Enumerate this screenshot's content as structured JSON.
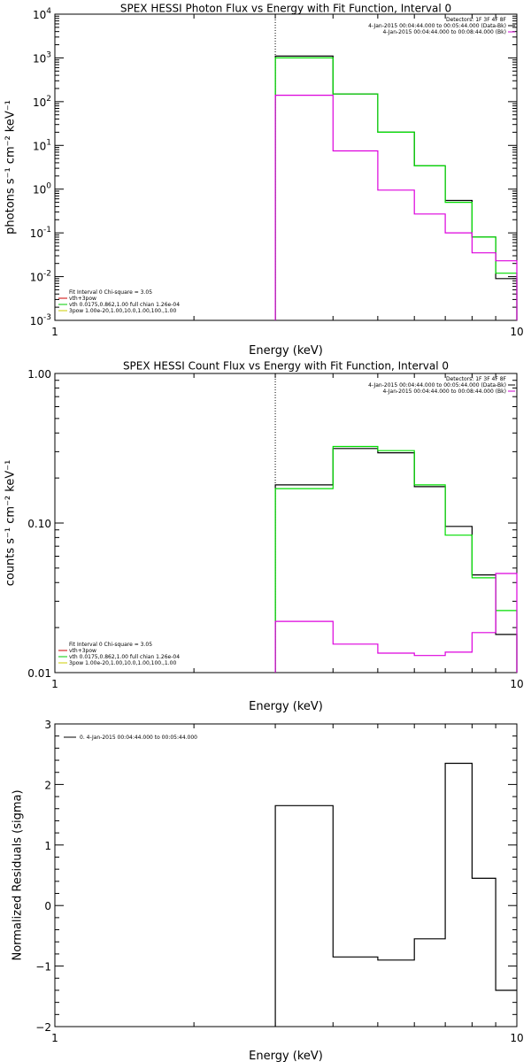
{
  "chart_data": [
    {
      "type": "line",
      "title": "SPEX HESSI Photon Flux vs Energy with Fit Function, Interval 0",
      "xlabel": "Energy (keV)",
      "ylabel": "photons s⁻¹ cm⁻² keV⁻¹",
      "xscale": "log",
      "yscale": "log",
      "xlim": [
        1,
        10
      ],
      "ylim": [
        0.001,
        10000
      ],
      "x_ticks": [
        {
          "v": 1,
          "label": "1"
        },
        {
          "v": 10,
          "label": "10"
        }
      ],
      "y_ticks": [
        {
          "v": 0.001,
          "b": "10",
          "e": "-3"
        },
        {
          "v": 0.01,
          "b": "10",
          "e": "-2"
        },
        {
          "v": 0.1,
          "b": "10",
          "e": "-1"
        },
        {
          "v": 1,
          "b": "10",
          "e": "0"
        },
        {
          "v": 10,
          "b": "10",
          "e": "1"
        },
        {
          "v": 100,
          "b": "10",
          "e": "2"
        },
        {
          "v": 1000,
          "b": "10",
          "e": "3"
        },
        {
          "v": 10000,
          "b": "10",
          "e": "4"
        }
      ],
      "vline_x": 3,
      "bin_edges": [
        3,
        4,
        5,
        6,
        7,
        8,
        9,
        10
      ],
      "header_lines": [
        "Detectors: 1F 3F 4F 8F",
        "4-Jan-2015 00:04:44.000 to 00:05:44.000 (Data-Bk)",
        "4-Jan-2015 00:04:44.000 to 00:08:44.000 (Bk)"
      ],
      "header_colors": [
        "",
        "#000000",
        "#cc00cc"
      ],
      "fit_lines": [
        "Fit Interval 0   Chi-square = 3.05",
        "vth+3pow",
        "vth 0.0175,0.862,1.00  full chian 1.26e-04",
        "3pow 1.00e-20,1.00,10.0,1.00,100.,1.00"
      ],
      "fit_colors": [
        "",
        "#cc0000",
        "#00cc00",
        "#cccc00"
      ],
      "series": [
        {
          "color": "#000000",
          "values": [
            1100,
            150,
            20,
            3.4,
            0.55,
            0.08,
            0.009
          ]
        },
        {
          "color": "#00dd00",
          "values": [
            1000,
            150,
            20,
            3.4,
            0.5,
            0.08,
            0.012
          ]
        },
        {
          "color": "#dd00dd",
          "values": [
            140,
            7.5,
            0.95,
            0.27,
            0.1,
            0.035,
            0.023
          ]
        }
      ]
    },
    {
      "type": "line",
      "title": "SPEX HESSI Count Flux vs Energy with Fit Function, Interval 0",
      "xlabel": "Energy (keV)",
      "ylabel": "counts s⁻¹ cm⁻² keV⁻¹",
      "xscale": "log",
      "yscale": "log",
      "xlim": [
        1,
        10
      ],
      "ylim": [
        0.01,
        1
      ],
      "x_ticks": [
        {
          "v": 1,
          "label": "1"
        },
        {
          "v": 10,
          "label": "10"
        }
      ],
      "y_ticks": [
        {
          "v": 0.01,
          "label": "0.01"
        },
        {
          "v": 0.1,
          "label": "0.10"
        },
        {
          "v": 1,
          "label": "1.00"
        }
      ],
      "vline_x": 3,
      "bin_edges": [
        3,
        4,
        5,
        6,
        7,
        8,
        9,
        10
      ],
      "header_lines": [
        "Detectors: 1F 3F 4F 8F",
        "4-Jan-2015 00:04:44.000 to 00:05:44.000 (Data-Bk)",
        "4-Jan-2015 00:04:44.000 to 00:08:44.000 (Bk)"
      ],
      "header_colors": [
        "",
        "#000000",
        "#cc00cc"
      ],
      "fit_lines": [
        "Fit Interval 0   Chi-square = 3.05",
        "vth+3pow",
        "vth 0.0175,0.862,1.00  full chian 1.26e-04",
        "3pow 1.00e-20,1.00,10.0,1.00,100.,1.00"
      ],
      "fit_colors": [
        "",
        "#cc0000",
        "#00cc00",
        "#cccc00"
      ],
      "series": [
        {
          "color": "#000000",
          "values": [
            0.18,
            0.315,
            0.295,
            0.175,
            0.095,
            0.045,
            0.018
          ]
        },
        {
          "color": "#00dd00",
          "values": [
            0.17,
            0.325,
            0.305,
            0.18,
            0.083,
            0.043,
            0.026
          ]
        },
        {
          "color": "#dd00dd",
          "values": [
            0.022,
            0.0155,
            0.0135,
            0.013,
            0.0137,
            0.0185,
            0.046
          ]
        }
      ]
    },
    {
      "type": "line",
      "title": "",
      "xlabel": "Energy (keV)",
      "ylabel": "Normalized Residuals (sigma)",
      "xscale": "log",
      "yscale": "linear",
      "xlim": [
        1,
        10
      ],
      "ylim": [
        -2,
        3
      ],
      "x_ticks": [
        {
          "v": 1,
          "label": "1"
        },
        {
          "v": 10,
          "label": "10"
        }
      ],
      "y_ticks": [
        {
          "v": -2,
          "label": "−2"
        },
        {
          "v": -1,
          "label": "−1"
        },
        {
          "v": 0,
          "label": "0"
        },
        {
          "v": 1,
          "label": "1"
        },
        {
          "v": 2,
          "label": "2"
        },
        {
          "v": 3,
          "label": "3"
        }
      ],
      "bin_edges": [
        3,
        4,
        5,
        6,
        7,
        8,
        9,
        10
      ],
      "legend": "0. 4-Jan-2015 00:04:44.000 to 00:05:44.000",
      "series": [
        {
          "color": "#000000",
          "values": [
            1.65,
            -0.85,
            -0.9,
            -0.55,
            2.35,
            0.45,
            -1.4
          ]
        }
      ]
    }
  ]
}
